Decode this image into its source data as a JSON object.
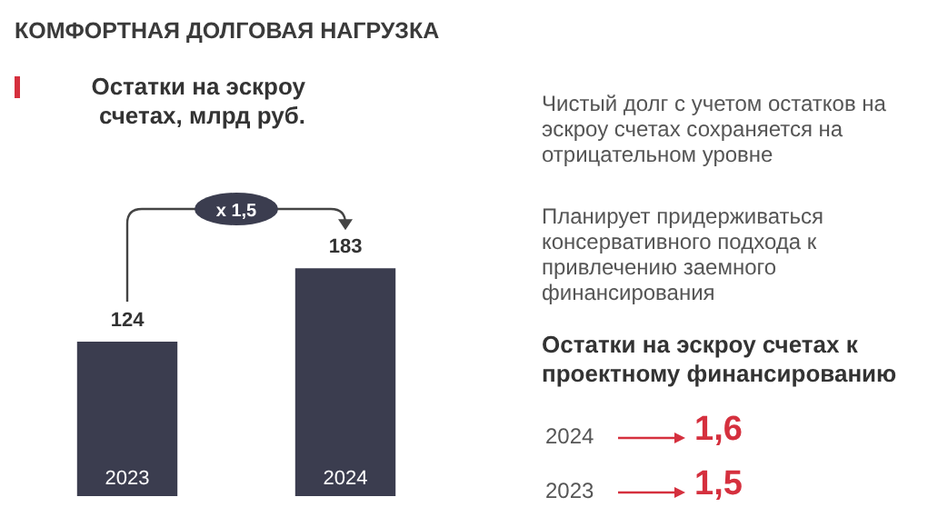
{
  "chart_data": {
    "type": "bar",
    "title": "КОМФОРТНАЯ ДОЛГОВАЯ НАГРУЗКА",
    "subtitle": "Остатки на эскроу счетах, млрд руб.",
    "categories": [
      "2023",
      "2024"
    ],
    "values": [
      124,
      183
    ],
    "color": "#3b3d4f",
    "data_labels": true,
    "annotations": [
      "x 1,5",
      "Чистый долг с учетом остатков на эскроу счетах сохраняется на отрицательном уровне",
      "Планирует придерживаться консервативного подхода к привлечению заемного финансирования",
      "Остатки на эскроу счетах к проектному финансированию",
      "2024",
      "1,6",
      "2023",
      "1,5"
    ]
  }
}
